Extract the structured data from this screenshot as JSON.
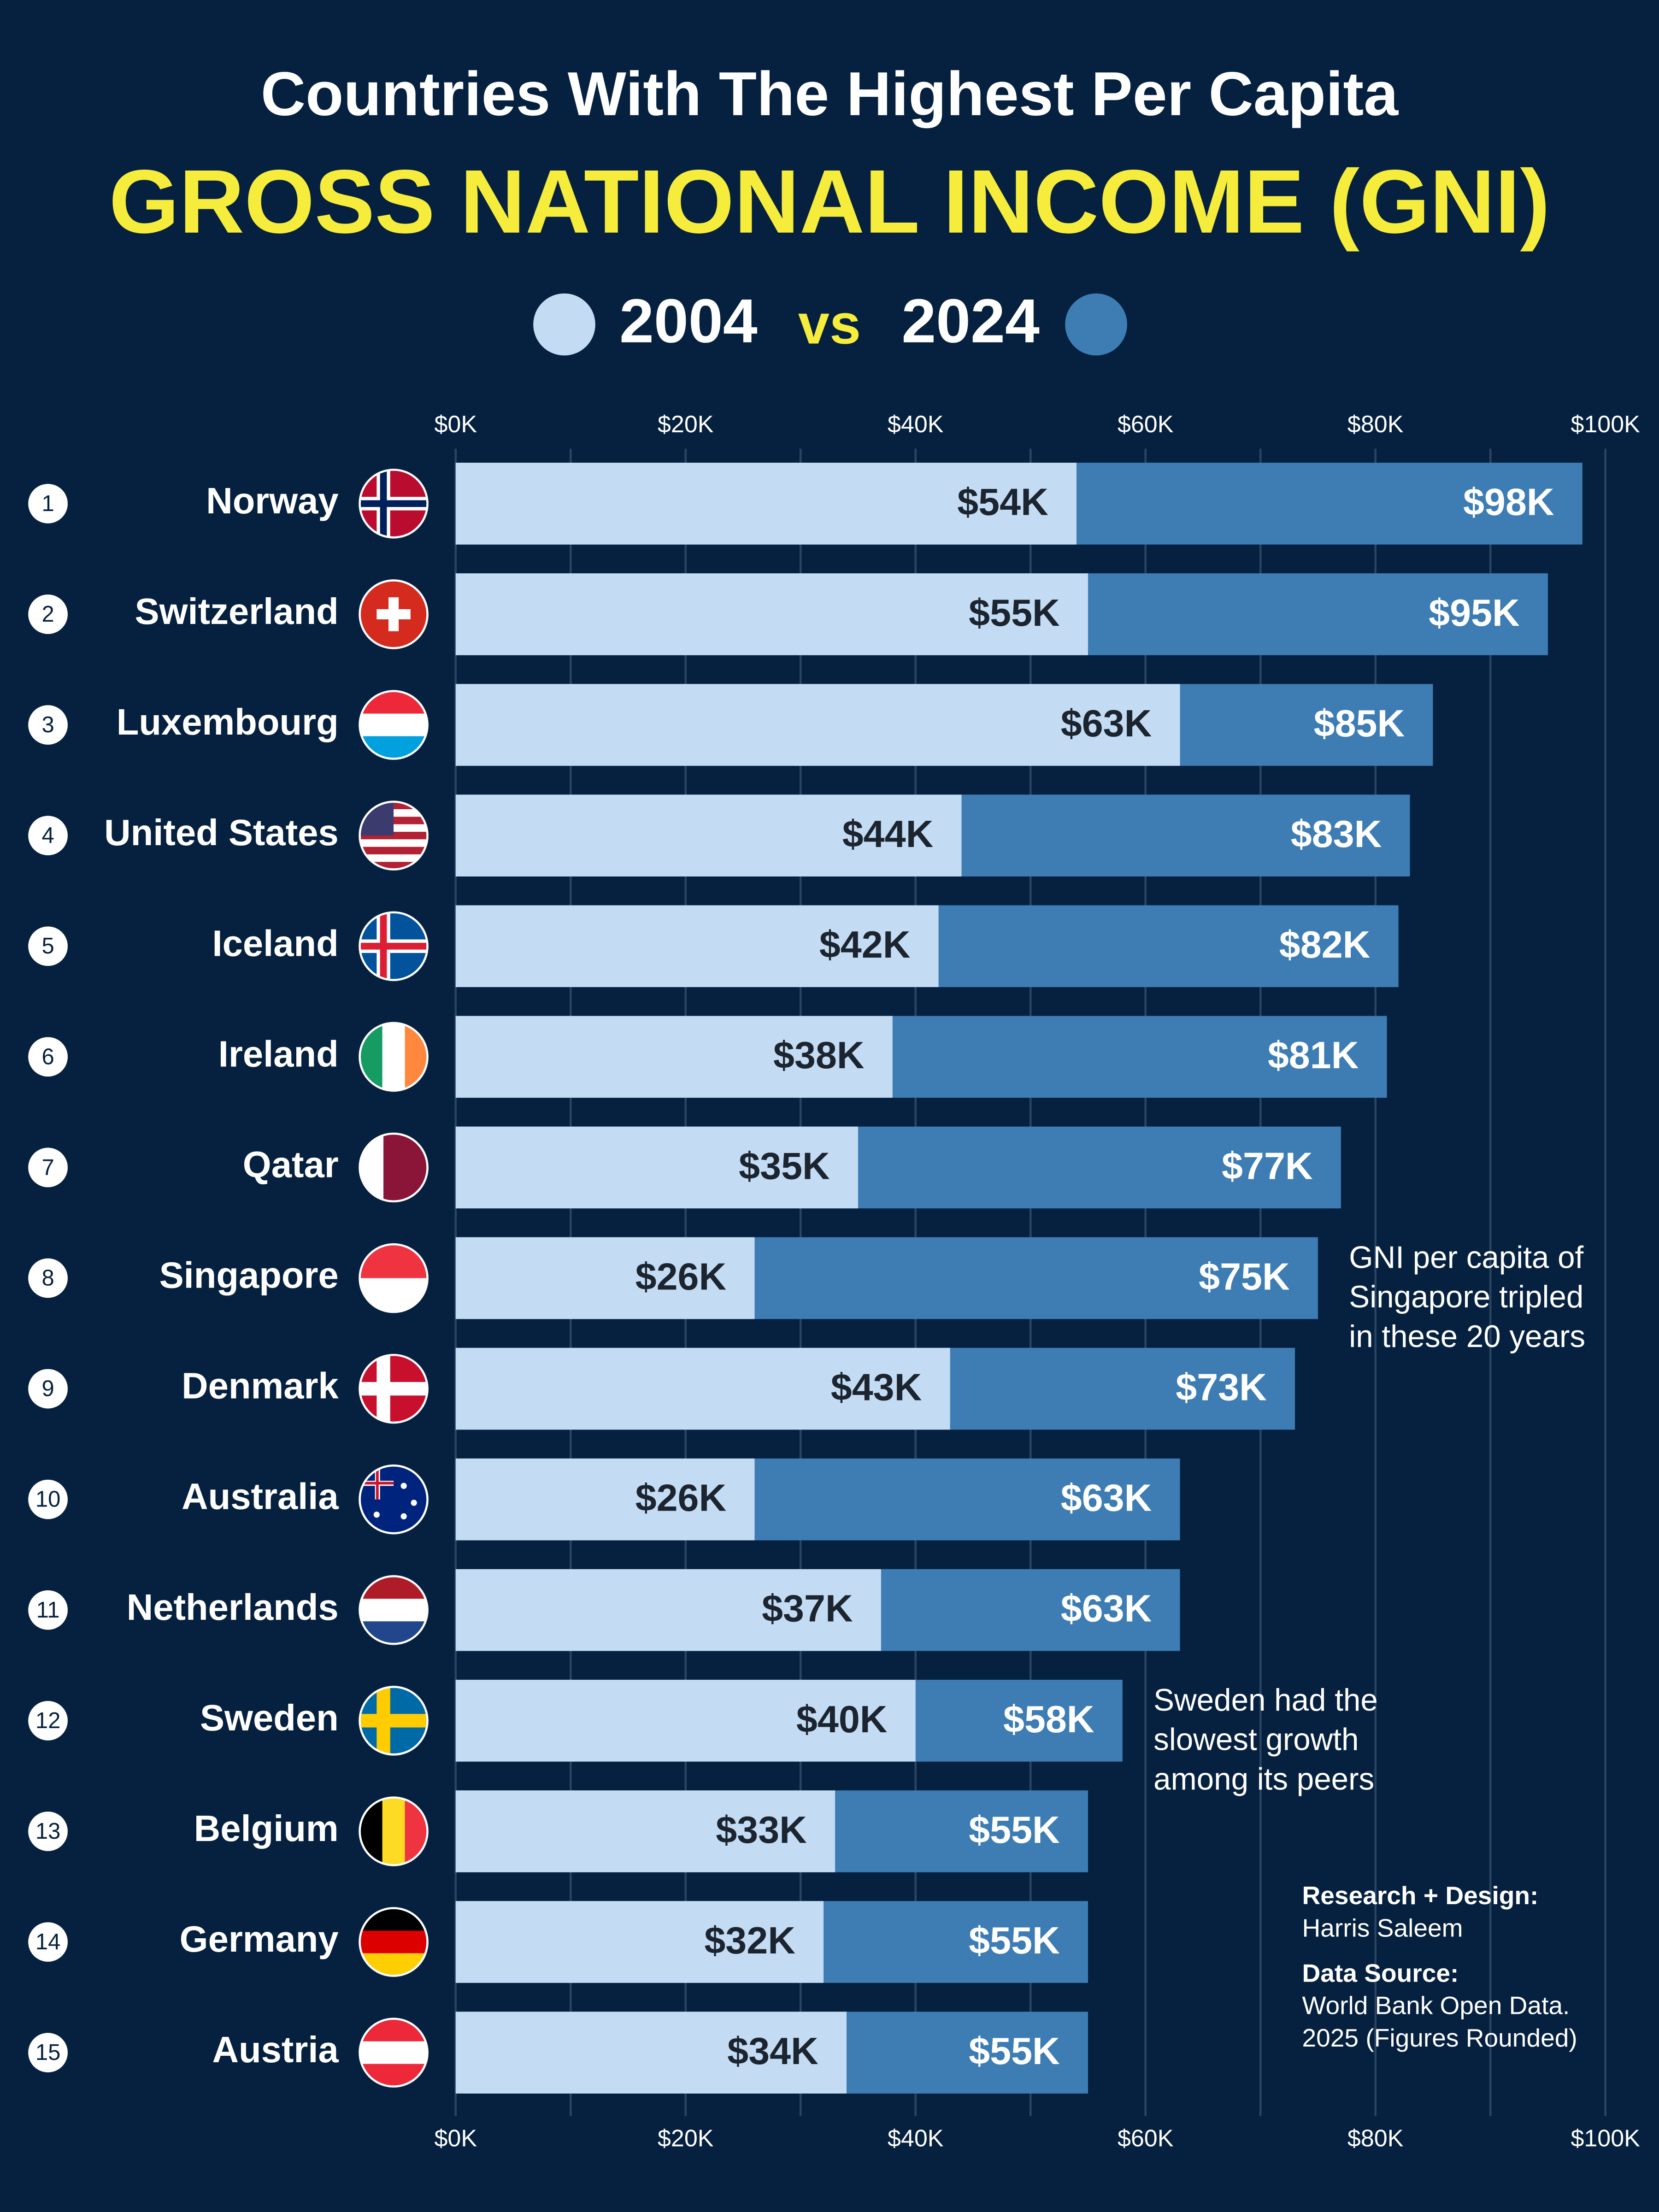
{
  "chart_data": {
    "type": "overlapping-bar",
    "title": "Countries With The Highest Per Capita",
    "subtitle": "GROSS NATIONAL INCOME (GNI)",
    "legend_joiner": "vs",
    "ranks": [
      1,
      2,
      3,
      4,
      5,
      6,
      7,
      8,
      9,
      10,
      11,
      12,
      13,
      14,
      15
    ],
    "categories": [
      "Norway",
      "Switzerland",
      "Luxembourg",
      "United States",
      "Iceland",
      "Ireland",
      "Qatar",
      "Singapore",
      "Denmark",
      "Australia",
      "Netherlands",
      "Sweden",
      "Belgium",
      "Germany",
      "Austria"
    ],
    "series": [
      {
        "name": "2004",
        "color": "#c3dcf3",
        "values": [
          54,
          55,
          63,
          44,
          42,
          38,
          35,
          26,
          43,
          26,
          37,
          40,
          33,
          32,
          34
        ],
        "value_labels": [
          "$54K",
          "$55K",
          "$63K",
          "$44K",
          "$42K",
          "$38K",
          "$35K",
          "$26K",
          "$43K",
          "$26K",
          "$37K",
          "$40K",
          "$33K",
          "$32K",
          "$34K"
        ]
      },
      {
        "name": "2024",
        "color": "#3d7db4",
        "values": [
          98,
          95,
          85,
          83,
          82,
          81,
          77,
          75,
          73,
          63,
          63,
          58,
          55,
          55,
          55
        ],
        "value_labels": [
          "$98K",
          "$95K",
          "$85K",
          "$83K",
          "$82K",
          "$81K",
          "$77K",
          "$75K",
          "$73K",
          "$63K",
          "$63K",
          "$58K",
          "$55K",
          "$55K",
          "$55K"
        ]
      }
    ],
    "xlim": [
      0,
      100
    ],
    "xticks": [
      {
        "value": 0,
        "label": "$0K"
      },
      {
        "value": 20,
        "label": "$20K"
      },
      {
        "value": 40,
        "label": "$40K"
      },
      {
        "value": 60,
        "label": "$60K"
      },
      {
        "value": 80,
        "label": "$80K"
      },
      {
        "value": 100,
        "label": "$100K"
      }
    ],
    "xminor": [
      10,
      30,
      50,
      70,
      90
    ],
    "grid": true,
    "annotations": [
      {
        "row": 7,
        "lines": [
          "GNI per capita of",
          "Singapore tripled",
          "in these 20 years"
        ]
      },
      {
        "row": 11,
        "lines": [
          "Sweden had the",
          "slowest growth",
          "among its peers"
        ]
      }
    ],
    "credits": [
      {
        "heading": "Research + Design:",
        "lines": [
          "Harris Saleem"
        ]
      },
      {
        "heading": "Data Source:",
        "lines": [
          "World Bank Open Data.",
          "2025 (Figures Rounded)"
        ]
      }
    ]
  }
}
